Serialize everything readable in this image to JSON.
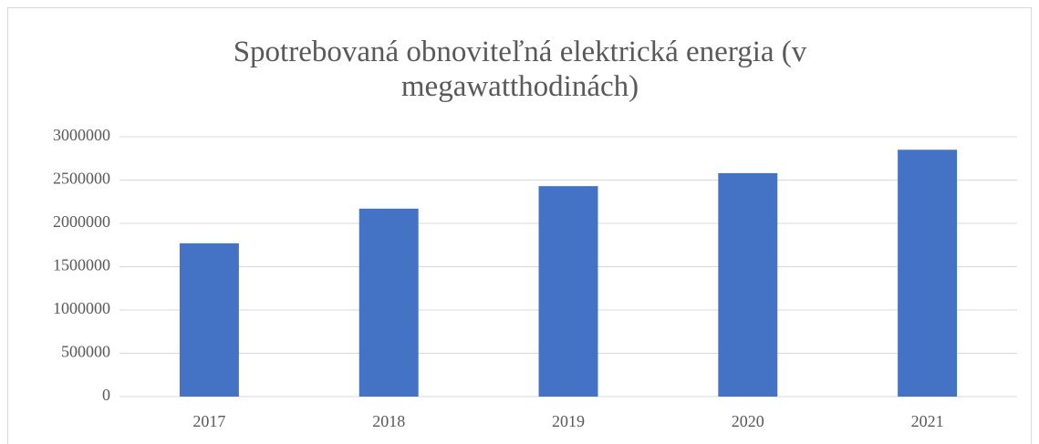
{
  "chart_data": {
    "type": "bar",
    "title": "Spotrebovaná obnoviteľná elektrická energia (v megawatthodinách)",
    "categories": [
      "2017",
      "2018",
      "2019",
      "2020",
      "2021"
    ],
    "values": [
      1770000,
      2170000,
      2430000,
      2580000,
      2850000
    ],
    "color": "#4472c4",
    "ylim": [
      0,
      3000000
    ],
    "yticks": [
      0,
      500000,
      1000000,
      1500000,
      2000000,
      2500000,
      3000000
    ],
    "grid": true
  }
}
